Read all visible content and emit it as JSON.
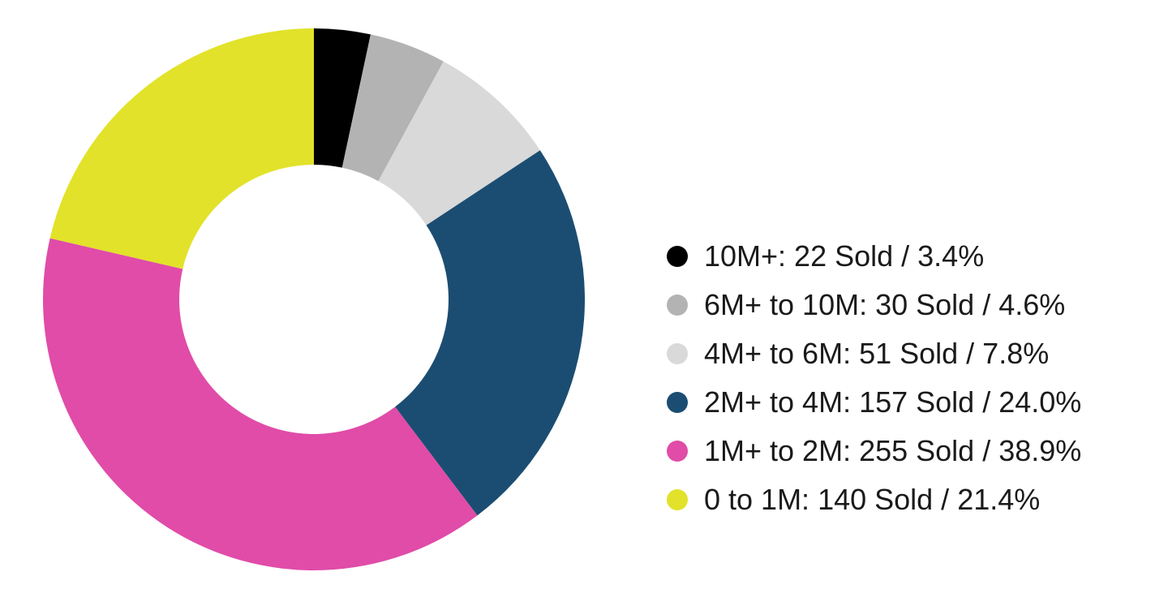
{
  "chart_data": {
    "type": "pie",
    "variant": "donut",
    "title": "",
    "legend_position": "right",
    "slices": [
      {
        "label": "10M+: 22 Sold / 3.4%",
        "category": "10M+",
        "sold": 22,
        "percent": 3.4,
        "color": "#000000"
      },
      {
        "label": "6M+ to 10M: 30 Sold / 4.6%",
        "category": "6M+ to 10M",
        "sold": 30,
        "percent": 4.6,
        "color": "#b3b3b3"
      },
      {
        "label": "4M+ to 6M: 51 Sold / 7.8%",
        "category": "4M+ to 6M",
        "sold": 51,
        "percent": 7.8,
        "color": "#d9d9d9"
      },
      {
        "label": "2M+ to 4M: 157 Sold / 24.0%",
        "category": "2M+ to 4M",
        "sold": 157,
        "percent": 24.0,
        "color": "#1b4d72"
      },
      {
        "label": "1M+ to 2M: 255 Sold / 38.9%",
        "category": "1M+ to 2M",
        "sold": 255,
        "percent": 38.9,
        "color": "#e04ca8"
      },
      {
        "label": "0 to 1M: 140 Sold / 21.4%",
        "category": "0 to 1M",
        "sold": 140,
        "percent": 21.4,
        "color": "#e2e22a"
      }
    ]
  }
}
